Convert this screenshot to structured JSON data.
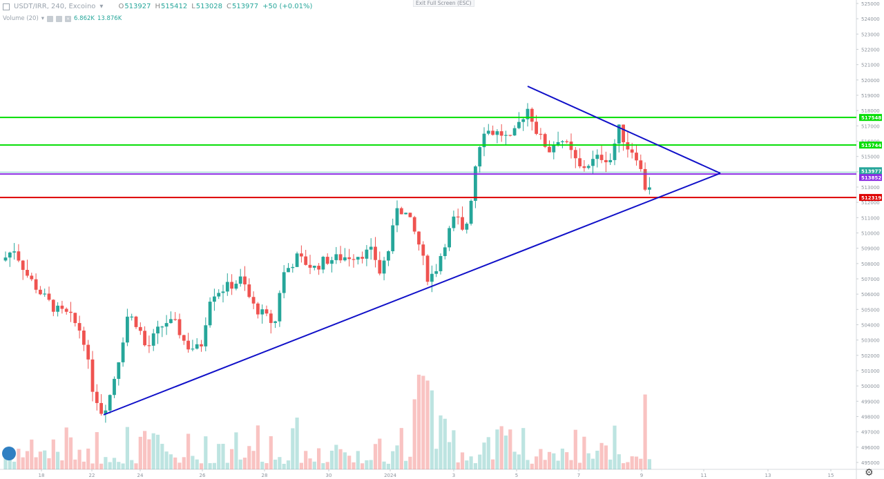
{
  "header": {
    "symbol": "USDT/IRR, 240, Excoino",
    "open_label": "O",
    "open": "513927",
    "high_label": "H",
    "high": "515412",
    "low_label": "L",
    "low": "513028",
    "close_label": "C",
    "close": "513977",
    "change": "+50 (+0.01%)"
  },
  "volume_legend": {
    "label": "Volume (20)",
    "v1": "6.862K",
    "v2": "13.876K"
  },
  "exit_fullscreen": "Exit Full Screen (ESC)",
  "icons": {
    "logo": "tradingview-cloud-icon",
    "settings": "gear-icon"
  },
  "colors": {
    "up": "#26a69a",
    "down": "#ef5350",
    "trend": "#1010c8",
    "support": "#00dd00",
    "resist": "#dd0000",
    "current": "#8a2be2"
  },
  "chart_data": {
    "type": "candlestick",
    "x_ticks": [
      "18",
      "22",
      "24",
      "26",
      "28",
      "30",
      "2024",
      "3",
      "5",
      "7",
      "9",
      "11",
      "13",
      "15"
    ],
    "y_ticks": [
      "525000",
      "524000",
      "523000",
      "522000",
      "521000",
      "520000",
      "519000",
      "518000",
      "517000",
      "516000",
      "515000",
      "514000",
      "513000",
      "512000",
      "511000",
      "510000",
      "509000",
      "508000",
      "507000",
      "506000",
      "505000",
      "504000",
      "503000",
      "502000",
      "501000",
      "500000",
      "499000",
      "498000",
      "497000",
      "496000",
      "495000"
    ],
    "y_range": [
      495000,
      525000
    ],
    "price_labels": [
      {
        "value": "517548",
        "color": "#00dd00"
      },
      {
        "value": "515744",
        "color": "#00dd00"
      },
      {
        "value": "513977",
        "color": "#26a69a"
      },
      {
        "value": "513852",
        "color": "#8a2be2"
      },
      {
        "value": "512319",
        "color": "#dd0000"
      }
    ],
    "horizontal_lines": [
      517548,
      515744,
      513977,
      513852,
      512319
    ],
    "candles": []
  }
}
